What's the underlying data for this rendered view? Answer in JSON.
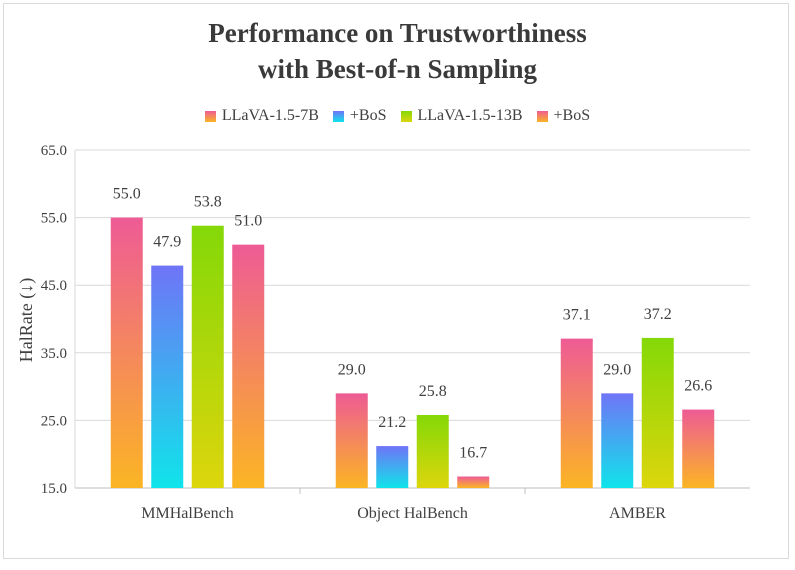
{
  "chart_data": {
    "type": "bar",
    "title_line1": "Performance on Trustworthiness",
    "title_line2": "with Best-of-n Sampling",
    "ylabel": "HalRate (↓)",
    "ylim": [
      15.0,
      65.0
    ],
    "yticks": [
      "15.0",
      "25.0",
      "35.0",
      "45.0",
      "55.0",
      "65.0"
    ],
    "grid": true,
    "legend_position": "top",
    "categories": [
      "MMHalBench",
      "Object HalBench",
      "AMBER"
    ],
    "series": [
      {
        "name": "LLaVA-1.5-7B",
        "values": [
          55.0,
          29.0,
          37.1
        ],
        "labels": [
          "55.0",
          "29.0",
          "37.1"
        ],
        "color_top": "#ee5b95",
        "color_bottom": "#fbb524"
      },
      {
        "name": "+BoS",
        "values": [
          47.9,
          21.2,
          29.0
        ],
        "labels": [
          "47.9",
          "21.2",
          "29.0"
        ],
        "color_top": "#6f74f7",
        "color_bottom": "#10e4ea"
      },
      {
        "name": "LLaVA-1.5-13B",
        "values": [
          53.8,
          25.8,
          37.2
        ],
        "labels": [
          "53.8",
          "25.8",
          "37.2"
        ],
        "color_top": "#84d808",
        "color_bottom": "#ddd60c"
      },
      {
        "name": "+BoS",
        "values": [
          51.0,
          16.7,
          26.6
        ],
        "labels": [
          "51.0",
          "16.7",
          "26.6"
        ],
        "color_top": "#ee5b95",
        "color_bottom": "#fbb524"
      }
    ]
  }
}
